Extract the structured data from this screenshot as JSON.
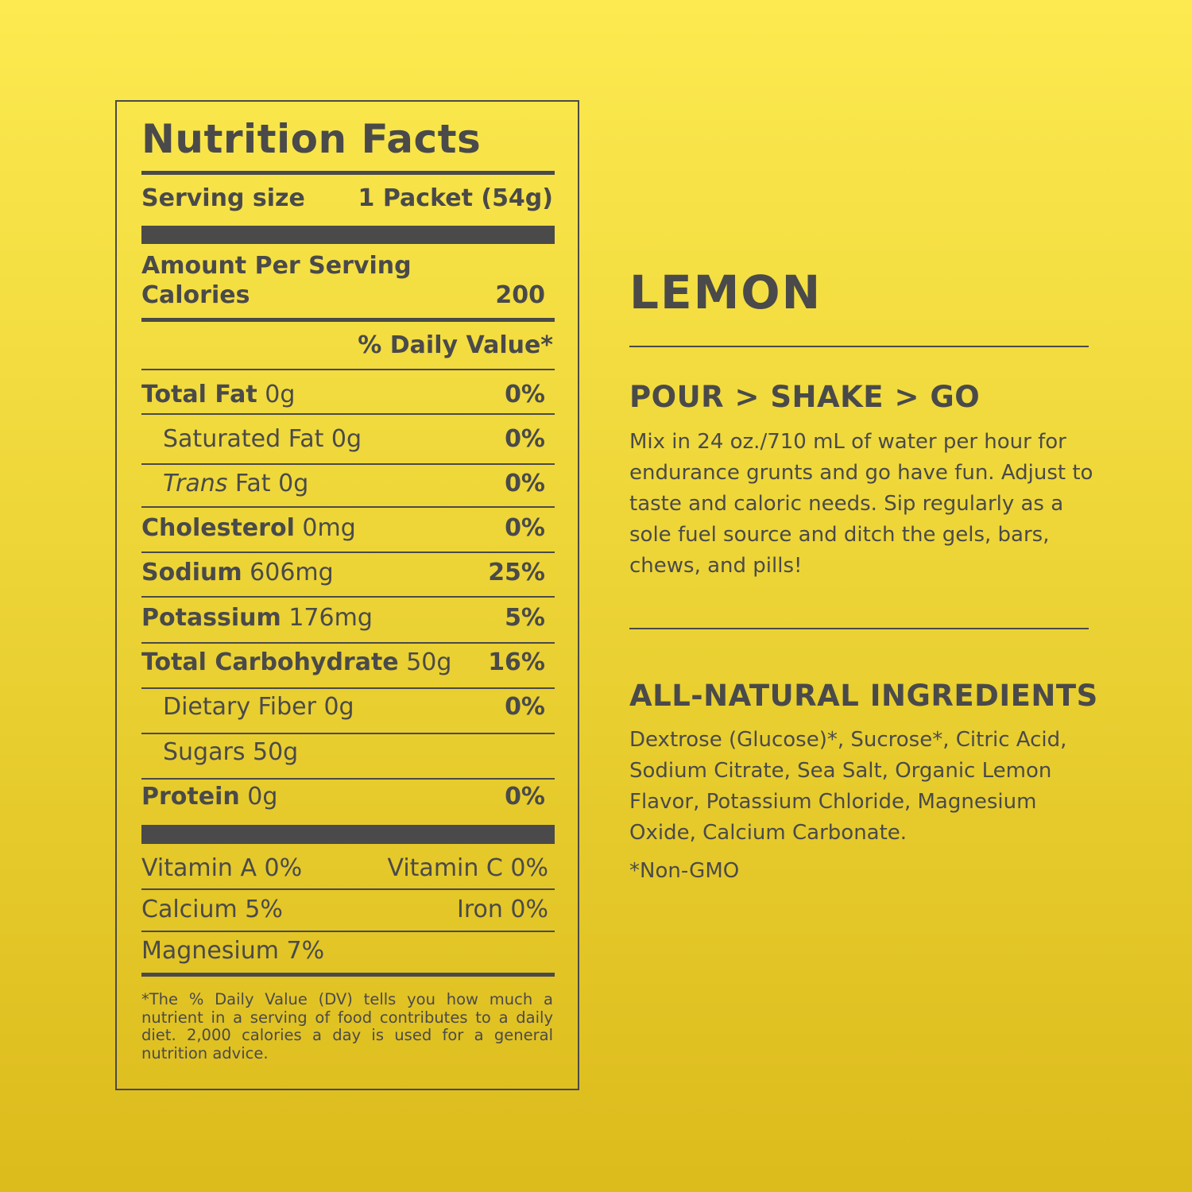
{
  "nutrition": {
    "title": "Nutrition Facts",
    "serving_label": "Serving size",
    "serving_value": "1 Packet (54g)",
    "amount_per_serving": "Amount Per Serving",
    "calories_label": "Calories",
    "calories_value": "200",
    "dv_header": "% Daily Value*",
    "rows": [
      {
        "name": "Total Fat",
        "amount": "0g",
        "dv": "0%"
      },
      {
        "name": "Saturated Fat",
        "amount": "0g",
        "dv": "0%"
      },
      {
        "name_italic": "Trans",
        "name": "Fat",
        "amount": "0g",
        "dv": "0%"
      },
      {
        "name": "Cholesterol",
        "amount": "0mg",
        "dv": "0%"
      },
      {
        "name": "Sodium",
        "amount": "606mg",
        "dv": "25%"
      },
      {
        "name": "Potassium",
        "amount": "176mg",
        "dv": "5%"
      },
      {
        "name": "Total Carbohydrate",
        "amount": "50g",
        "dv": "16%"
      },
      {
        "name": "Dietary Fiber",
        "amount": "0g",
        "dv": "0%"
      },
      {
        "name": "Sugars",
        "amount": "50g",
        "dv": ""
      },
      {
        "name": "Protein",
        "amount": "0g",
        "dv": "0%"
      }
    ],
    "vitamins": {
      "vitamin_a": "Vitamin A 0%",
      "vitamin_c": "Vitamin C 0%",
      "calcium": "Calcium 5%",
      "iron": "Iron 0%",
      "magnesium": "Magnesium 7%"
    },
    "footnote": "*The % Daily Value (DV) tells you how much a nutrient in a serving of food contributes to a daily diet. 2,000 calories a day is used for a general nutrition advice."
  },
  "product": {
    "flavor": "LEMON",
    "directions_heading": "POUR > SHAKE > GO",
    "directions_text": "Mix in 24 oz./710 mL of water per hour for endurance grunts and go have fun. Adjust to taste and caloric needs. Sip regularly as a sole fuel source and ditch the gels, bars, chews, and pills!",
    "ingredients_heading": "ALL-NATURAL INGREDIENTS",
    "ingredients_text": "Dextrose (Glucose)*, Sucrose*, Citric Acid, Sodium Citrate, Sea Salt, Organic Lemon Flavor, Potassium Chloride, Magnesium Oxide, Calcium Carbonate.",
    "footnote": "*Non-GMO"
  },
  "colors": {
    "text": "#4a4a4a",
    "background_top": "#fcea50",
    "background_bottom": "#dcbb1c"
  }
}
